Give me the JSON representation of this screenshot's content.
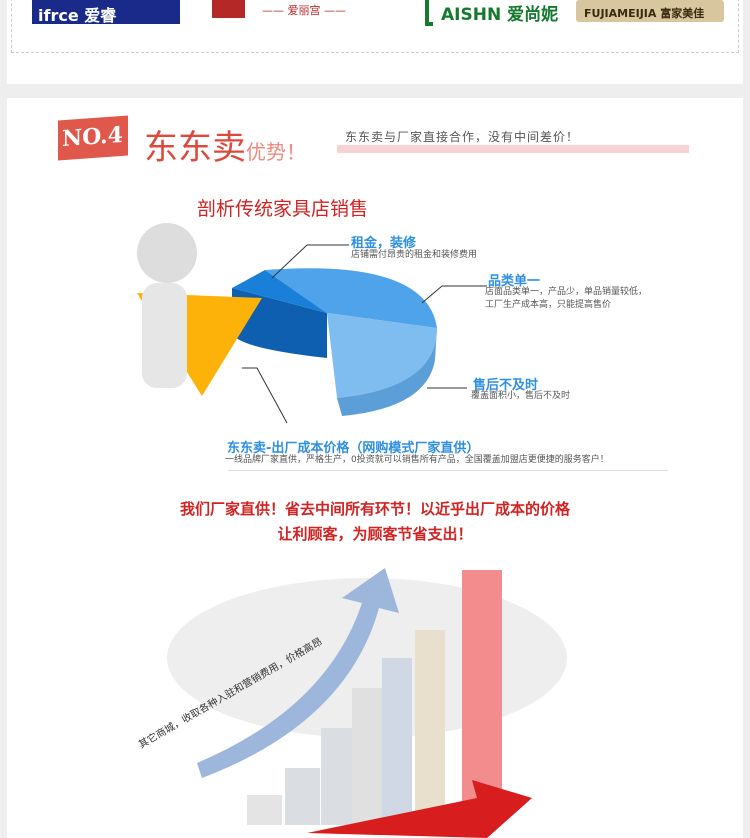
{
  "brands": [
    {
      "name": "ifrce 爱睿",
      "icon": "ifrce-logo"
    },
    {
      "name": "爱丽宫",
      "icon": "ailigong-logo"
    },
    {
      "name": "AISHN 爱尚妮",
      "icon": "aishn-logo"
    },
    {
      "name": "FUJIAMEIJIA 富家美佳",
      "icon": "fujiameijia-logo"
    }
  ],
  "section": {
    "badge": "NO.4",
    "title": "东东卖",
    "title_suffix": "优势！",
    "subtitle": "东东卖与厂家直接合作，没有中间差价！"
  },
  "analysis": {
    "title": "剖析传统家具店销售",
    "items": [
      {
        "label": "租金，装修",
        "desc": "店铺需付昂贵的租金和装修费用"
      },
      {
        "label": "品类单一",
        "desc": "店面品类单一，产品少，单品销量较低，",
        "desc2": "工厂生产成本高，只能提高售价"
      },
      {
        "label": "售后不及时",
        "desc": "覆盖面积小，售后不及时"
      },
      {
        "label": "东东卖-出厂成本价格（网购模式厂家直供）",
        "desc": "一线品牌厂家直供，严格生产，0投资就可以销售所有产品，全国覆盖加盟店更便捷的服务客户！"
      }
    ],
    "colors": {
      "orange": "#fdb20a",
      "blue_dark": "#1a7fd8",
      "blue_mid": "#4ea3ea",
      "blue_light": "#7fbcef"
    }
  },
  "promo": {
    "line1": "我们厂家直供！省去中间所有环节！以近乎出厂成本的价格",
    "line2": "让利顾客，为顾客节省支出！",
    "arrow_text": "其它商城，收取各种入驻和营销费用，价格高昂"
  }
}
